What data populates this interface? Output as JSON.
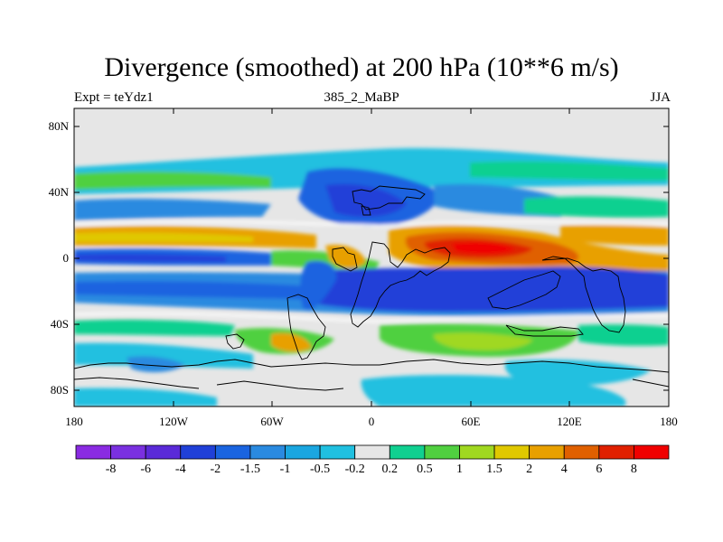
{
  "title": "Divergence (smoothed) at 200 hPa (10**6 m/s)",
  "subtitle_left": "Expt = teYdz1",
  "subtitle_center": "385_2_MaBP",
  "subtitle_right": "JJA",
  "lat_labels": [
    "80N",
    "40N",
    "0",
    "40S",
    "80S"
  ],
  "lon_labels": [
    "180",
    "120W",
    "60W",
    "0",
    "60E",
    "120E",
    "180"
  ],
  "legend": {
    "labels": [
      "-8",
      "-6",
      "-4",
      "-2",
      "-1.5",
      "-1",
      "-0.5",
      "-0.2",
      "0.2",
      "0.5",
      "1",
      "1.5",
      "2",
      "4",
      "6",
      "8"
    ],
    "colors": [
      "#8a2be2",
      "#7a30e0",
      "#5a2ad8",
      "#2040d8",
      "#1a64e0",
      "#2a8ae0",
      "#1aa6e0",
      "#20c0e0",
      "#e6e6e6",
      "#10d090",
      "#50d040",
      "#a0d820",
      "#e0c800",
      "#e8a000",
      "#e06000",
      "#e02000",
      "#f00000"
    ]
  }
}
